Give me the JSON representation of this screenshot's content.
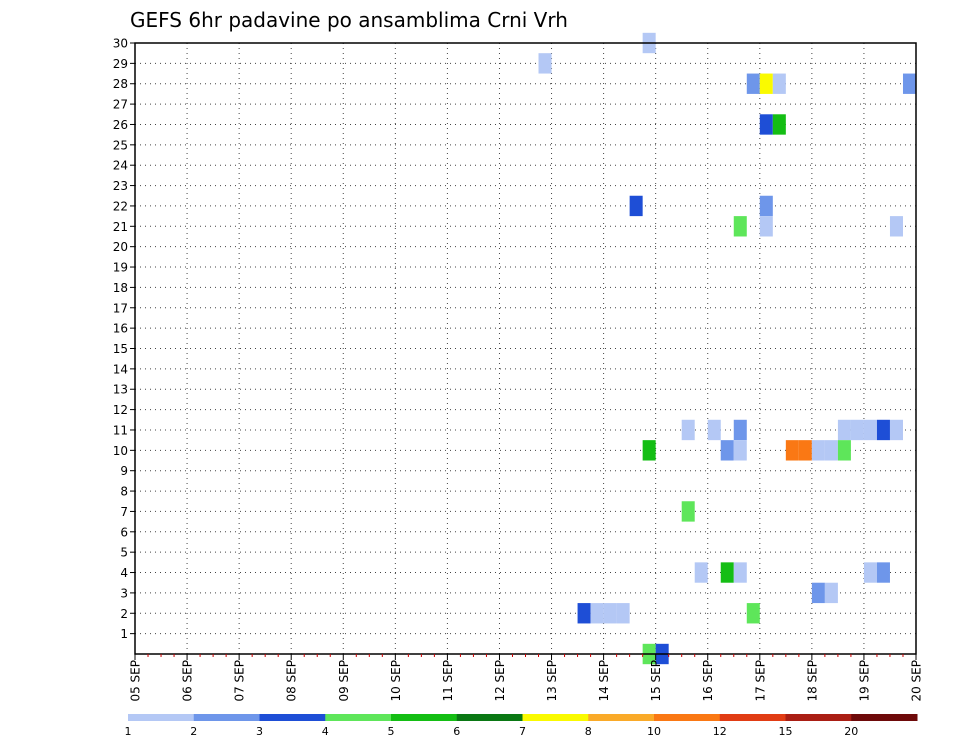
{
  "chart_data": {
    "type": "heatmap",
    "title": "GEFS 6hr padavine po ansamblima Crni Vrh",
    "x_labels": [
      "05 SEP",
      "06 SEP",
      "07 SEP",
      "08 SEP",
      "09 SEP",
      "10 SEP",
      "11 SEP",
      "12 SEP",
      "13 SEP",
      "14 SEP",
      "15 SEP",
      "16 SEP",
      "17 SEP",
      "18 SEP",
      "19 SEP",
      "20 SEP"
    ],
    "y_labels": [
      "1",
      "2",
      "3",
      "4",
      "5",
      "6",
      "7",
      "8",
      "9",
      "10",
      "11",
      "12",
      "13",
      "14",
      "15",
      "16",
      "17",
      "18",
      "19",
      "20",
      "21",
      "22",
      "23",
      "24",
      "25",
      "26",
      "27",
      "28",
      "29",
      "30"
    ],
    "grid": true,
    "time_steps_per_day": 4,
    "colorbar": {
      "labels": [
        "1",
        "2",
        "3",
        "4",
        "5",
        "6",
        "7",
        "8",
        "10",
        "12",
        "15",
        "20"
      ],
      "colors": [
        "#b4c8f5",
        "#6e96ea",
        "#1e4ed6",
        "#5ee65a",
        "#14be14",
        "#0a7814",
        "#fafa00",
        "#faaa28",
        "#fa7814",
        "#e13c14",
        "#aa1e14",
        "#6e0a0a"
      ]
    },
    "cells": [
      {
        "member": 30,
        "step": 39.5,
        "color": "#b4c8f5"
      },
      {
        "member": 29,
        "step": 31.5,
        "color": "#b4c8f5"
      },
      {
        "member": 28,
        "step": 47.5,
        "color": "#6e96ea"
      },
      {
        "member": 28,
        "step": 48.5,
        "color": "#fafa00"
      },
      {
        "member": 28,
        "step": 49.5,
        "color": "#b4c8f5"
      },
      {
        "member": 28,
        "step": 59.5,
        "color": "#6e96ea"
      },
      {
        "member": 26,
        "step": 48.5,
        "color": "#1e4ed6"
      },
      {
        "member": 26,
        "step": 49.5,
        "color": "#14be14"
      },
      {
        "member": 22,
        "step": 38.5,
        "color": "#1e4ed6"
      },
      {
        "member": 22,
        "step": 48.5,
        "color": "#6e96ea"
      },
      {
        "member": 21,
        "step": 46.5,
        "color": "#5ee65a"
      },
      {
        "member": 21,
        "step": 48.5,
        "color": "#b4c8f5"
      },
      {
        "member": 21,
        "step": 58.5,
        "color": "#b4c8f5"
      },
      {
        "member": 11,
        "step": 42.5,
        "color": "#b4c8f5"
      },
      {
        "member": 11,
        "step": 44.5,
        "color": "#b4c8f5"
      },
      {
        "member": 11,
        "step": 46.5,
        "color": "#6e96ea"
      },
      {
        "member": 11,
        "step": 54.5,
        "color": "#b4c8f5"
      },
      {
        "member": 11,
        "step": 55.5,
        "color": "#b4c8f5"
      },
      {
        "member": 11,
        "step": 56.5,
        "color": "#b4c8f5"
      },
      {
        "member": 11,
        "step": 57.5,
        "color": "#1e4ed6"
      },
      {
        "member": 11,
        "step": 58.5,
        "color": "#b4c8f5"
      },
      {
        "member": 10,
        "step": 39.5,
        "color": "#14be14"
      },
      {
        "member": 10,
        "step": 45.5,
        "color": "#6e96ea"
      },
      {
        "member": 10,
        "step": 46.5,
        "color": "#b4c8f5"
      },
      {
        "member": 10,
        "step": 50.5,
        "color": "#fa7814"
      },
      {
        "member": 10,
        "step": 51.5,
        "color": "#fa7814"
      },
      {
        "member": 10,
        "step": 52.5,
        "color": "#b4c8f5"
      },
      {
        "member": 10,
        "step": 53.5,
        "color": "#b4c8f5"
      },
      {
        "member": 10,
        "step": 54.5,
        "color": "#5ee65a"
      },
      {
        "member": 7,
        "step": 42.5,
        "color": "#5ee65a"
      },
      {
        "member": 4,
        "step": 43.5,
        "color": "#b4c8f5"
      },
      {
        "member": 4,
        "step": 45.5,
        "color": "#14be14"
      },
      {
        "member": 4,
        "step": 46.5,
        "color": "#b4c8f5"
      },
      {
        "member": 4,
        "step": 56.5,
        "color": "#b4c8f5"
      },
      {
        "member": 4,
        "step": 57.5,
        "color": "#6e96ea"
      },
      {
        "member": 3,
        "step": 52.5,
        "color": "#6e96ea"
      },
      {
        "member": 3,
        "step": 53.5,
        "color": "#b4c8f5"
      },
      {
        "member": 2,
        "step": 34.5,
        "color": "#1e4ed6"
      },
      {
        "member": 2,
        "step": 35.5,
        "color": "#b4c8f5"
      },
      {
        "member": 2,
        "step": 36.5,
        "color": "#b4c8f5"
      },
      {
        "member": 2,
        "step": 37.5,
        "color": "#b4c8f5"
      },
      {
        "member": 2,
        "step": 47.5,
        "color": "#5ee65a"
      },
      {
        "member": 0,
        "step": 39.5,
        "color": "#5ee65a"
      },
      {
        "member": 0,
        "step": 40.5,
        "color": "#1e4ed6"
      }
    ]
  }
}
